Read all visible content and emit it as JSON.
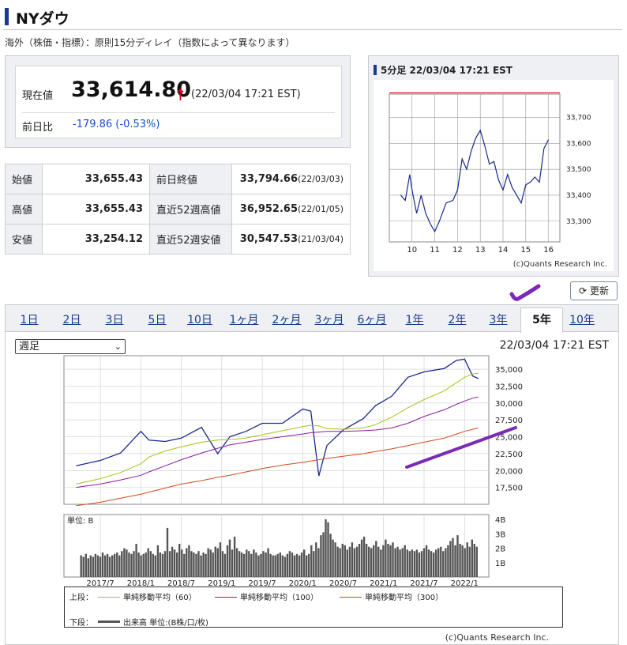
{
  "page": {
    "title": "NYダウ",
    "note": "海外（株価・指標）：原則15分ディレイ（指数によって異なります）"
  },
  "quote": {
    "current_label": "現在値",
    "current_value": "33,614.80",
    "arrow": "↑",
    "time": "(22/03/04 17:21 EST)",
    "change_label": "前日比",
    "change_value": "-179.86 (-0.53%)",
    "change_color": "#1a4ac8",
    "up_arrow_color": "#d0021b"
  },
  "stats": [
    {
      "label": "始値",
      "value": "33,655.43",
      "label2": "前日終値",
      "value2": "33,794.66",
      "date2": "(22/03/03)"
    },
    {
      "label": "高値",
      "value": "33,655.43",
      "label2": "直近52週高値",
      "value2": "36,952.65",
      "date2": "(22/01/05)"
    },
    {
      "label": "安値",
      "value": "33,254.12",
      "label2": "直近52週安値",
      "value2": "30,547.53",
      "date2": "(21/03/04)"
    }
  ],
  "mini_chart": {
    "title": "5分足 22/03/04 17:21 EST",
    "credit": "(c)Quants Research Inc."
  },
  "refresh_label": "更新",
  "refresh_icon": "refresh-icon",
  "tabs": [
    "1日",
    "2日",
    "3日",
    "5日",
    "10日",
    "1ヶ月",
    "2ヶ月",
    "3ヶ月",
    "6ヶ月",
    "1年",
    "2年",
    "3年",
    "5年",
    "10年"
  ],
  "active_tab": "5年",
  "main_chart": {
    "select_value": "週足",
    "time": "22/03/04 17:21 EST",
    "volume_unit": "単位: B",
    "credit": "(c)Quants Research Inc."
  },
  "legend": {
    "upper_label": "上段：",
    "lower_label": "下段：",
    "ma60": "単純移動平均（60）",
    "ma100": "単純移動平均（100）",
    "ma300": "単純移動平均（300）",
    "volume": "出来高 単位:(B株/口/枚)",
    "ma60_color": "#a6c21a",
    "ma100_color": "#8a1aa8",
    "ma300_color": "#d24a1a",
    "volume_color": "#555555"
  },
  "chart_data": [
    {
      "type": "line",
      "title": "5分足 22/03/04 17:21 EST",
      "x_ticks": [
        "10",
        "11",
        "12",
        "13",
        "14",
        "15",
        "16"
      ],
      "y_ticks": [
        33300,
        33400,
        33500,
        33600,
        33700
      ],
      "ylim": [
        33220,
        33790
      ],
      "reference_line": 33794.66,
      "series": [
        {
          "x": [
            9.5,
            9.7,
            9.9,
            10.0,
            10.2,
            10.4,
            10.6,
            10.8,
            11.0,
            11.2,
            11.5,
            11.8,
            12.0,
            12.2,
            12.4,
            12.6,
            12.8,
            13.0,
            13.2,
            13.4,
            13.6,
            13.8,
            14.0,
            14.2,
            14.4,
            14.6,
            14.8,
            15.0,
            15.2,
            15.4,
            15.6,
            15.8,
            16.0
          ],
          "y": [
            33400,
            33380,
            33480,
            33420,
            33330,
            33400,
            33330,
            33290,
            33260,
            33300,
            33370,
            33380,
            33420,
            33540,
            33500,
            33570,
            33620,
            33650,
            33590,
            33520,
            33530,
            33460,
            33420,
            33480,
            33430,
            33400,
            33370,
            33440,
            33450,
            33470,
            33450,
            33580,
            33614
          ]
        }
      ]
    },
    {
      "type": "line",
      "title": "",
      "x_ticks": [
        "2017/7",
        "2018/1",
        "2018/7",
        "2019/1",
        "2019/7",
        "2020/1",
        "2020/7",
        "2021/1",
        "2021/7",
        "2022/1"
      ],
      "y_ticks": [
        17500,
        20000,
        22500,
        25000,
        27500,
        30000,
        32500,
        35000
      ],
      "ylim": [
        15000,
        37000
      ],
      "x": [
        2017.2,
        2017.5,
        2017.75,
        2018.0,
        2018.1,
        2018.3,
        2018.5,
        2018.75,
        2018.95,
        2019.1,
        2019.3,
        2019.5,
        2019.75,
        2020.0,
        2020.1,
        2020.2,
        2020.3,
        2020.5,
        2020.75,
        2020.9,
        2021.1,
        2021.3,
        2021.5,
        2021.75,
        2021.9,
        2022.0,
        2022.1,
        2022.17
      ],
      "series": [
        {
          "values": [
            20700,
            21500,
            22600,
            25800,
            24500,
            24300,
            24800,
            26400,
            22500,
            25000,
            25800,
            27000,
            27000,
            29100,
            28800,
            19200,
            23700,
            26000,
            27700,
            29600,
            31000,
            33800,
            34600,
            35100,
            36300,
            36500,
            34000,
            33614
          ]
        },
        {
          "values": [
            18000,
            18800,
            19700,
            21000,
            22000,
            22900,
            23500,
            24200,
            24500,
            24600,
            24800,
            25300,
            25900,
            26500,
            26700,
            26600,
            26200,
            26100,
            26300,
            26800,
            27900,
            29300,
            30500,
            31800,
            33000,
            33800,
            34300,
            34400
          ]
        },
        {
          "values": [
            17500,
            18000,
            18600,
            19300,
            19800,
            20700,
            21600,
            22600,
            23300,
            23800,
            24200,
            24600,
            25000,
            25400,
            25600,
            25700,
            25800,
            25800,
            25900,
            26000,
            26300,
            27000,
            28000,
            29000,
            29800,
            30300,
            30700,
            30900
          ]
        },
        {
          "values": [
            14800,
            15300,
            15900,
            16500,
            16800,
            17400,
            18000,
            18500,
            19000,
            19300,
            19800,
            20300,
            20800,
            21200,
            21400,
            21600,
            21800,
            22100,
            22500,
            22800,
            23200,
            23700,
            24200,
            24800,
            25400,
            25800,
            26100,
            26300
          ]
        }
      ]
    },
    {
      "type": "bar",
      "title": "",
      "y_ticks": [
        "1B",
        "2B",
        "3B",
        "4B"
      ],
      "ylim": [
        0,
        4
      ],
      "values": [
        1.5,
        1.4,
        1.6,
        1.3,
        1.5,
        1.4,
        1.6,
        1.5,
        1.4,
        1.7,
        1.5,
        1.6,
        1.4,
        1.5,
        1.6,
        1.7,
        1.5,
        1.8,
        2.0,
        1.9,
        1.7,
        1.6,
        1.8,
        2.3,
        1.7,
        1.5,
        1.6,
        1.7,
        2.0,
        1.8,
        1.6,
        1.5,
        2.2,
        1.7,
        1.6,
        1.8,
        3.4,
        1.8,
        2.1,
        1.9,
        1.7,
        2.3,
        1.9,
        1.6,
        2.0,
        2.2,
        1.8,
        1.7,
        1.6,
        1.8,
        1.5,
        1.7,
        1.6,
        2.0,
        1.9,
        1.7,
        2.1,
        2.0,
        2.4,
        1.8,
        1.6,
        2.2,
        2.6,
        1.9,
        2.8,
        2.0,
        1.8,
        1.7,
        1.6,
        1.9,
        1.8,
        1.6,
        1.9,
        1.7,
        1.5,
        1.6,
        1.8,
        1.7,
        2.0,
        1.6,
        1.5,
        1.5,
        1.6,
        1.7,
        1.5,
        1.4,
        1.6,
        1.8,
        1.7,
        1.5,
        1.6,
        1.5,
        1.7,
        1.9,
        1.5,
        1.6,
        2.2,
        1.8,
        2.4,
        2.0,
        2.9,
        3.1,
        4.0,
        3.8,
        3.0,
        2.6,
        2.4,
        2.1,
        2.0,
        2.3,
        2.2,
        1.9,
        2.1,
        2.4,
        2.0,
        2.1,
        2.3,
        2.6,
        2.8,
        2.3,
        2.1,
        2.0,
        2.2,
        2.5,
        2.1,
        1.9,
        2.2,
        2.6,
        2.3,
        2.2,
        2.4,
        2.0,
        2.1,
        1.9,
        2.0,
        2.2,
        1.9,
        1.8,
        1.9,
        1.8,
        1.9,
        1.7,
        1.8,
        2.0,
        2.2,
        1.9,
        1.8,
        1.7,
        1.9,
        2.0,
        2.1,
        1.8,
        2.0,
        2.2,
        2.5,
        2.7,
        2.2,
        2.9,
        2.3,
        2.2,
        2.0,
        2.4,
        2.1,
        2.6,
        2.3,
        2.1
      ]
    }
  ]
}
